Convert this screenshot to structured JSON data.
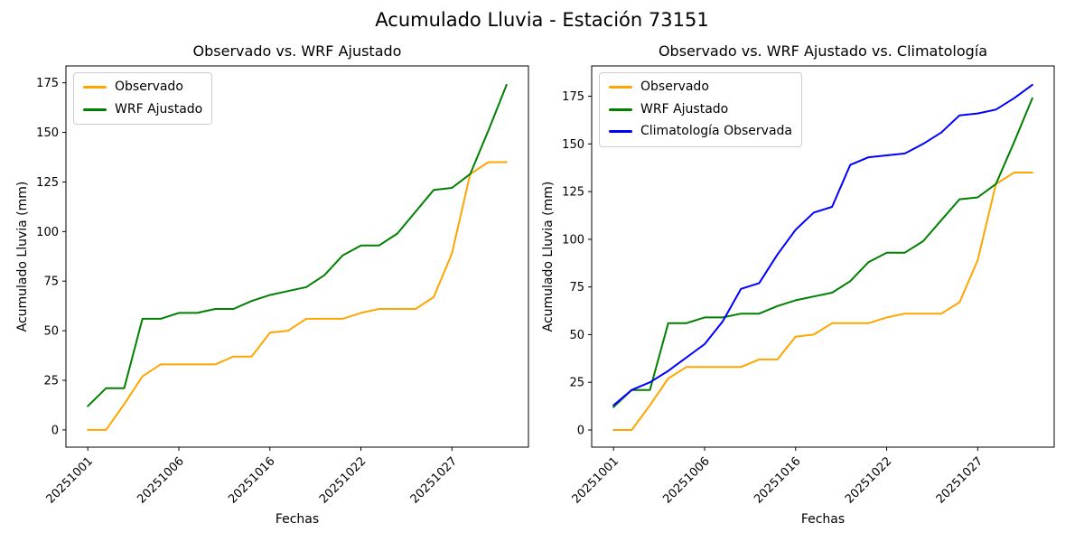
{
  "suptitle": "Acumulado Lluvia - Estación 73151",
  "chart_data": [
    {
      "type": "line",
      "title": "Observado vs. WRF Ajustado",
      "xlabel": "Fechas",
      "ylabel": "Acumulado Lluvia (mm)",
      "grid": false,
      "legend_position": "upper left",
      "x": [
        0,
        1,
        2,
        3,
        4,
        5,
        6,
        7,
        8,
        9,
        10,
        11,
        12,
        13,
        14,
        15,
        16,
        17,
        18,
        19,
        20,
        21,
        22,
        23
      ],
      "x_tick_positions": [
        0,
        5,
        10,
        15,
        20
      ],
      "x_tick_labels": [
        "20251001",
        "20251006",
        "20251016",
        "20251022",
        "20251027"
      ],
      "y_ticks": [
        0,
        25,
        50,
        75,
        100,
        125,
        150,
        175
      ],
      "xlim": [
        -1.2,
        24.2
      ],
      "ylim": [
        -8.7,
        183.5
      ],
      "series": [
        {
          "name": "Observado",
          "color": "#FFA500",
          "values": [
            0,
            0,
            13,
            27,
            33,
            33,
            33,
            33,
            37,
            37,
            49,
            50,
            56,
            56,
            56,
            59,
            61,
            61,
            61,
            67,
            89,
            129,
            135,
            135
          ]
        },
        {
          "name": "WRF Ajustado",
          "color": "#008000",
          "values": [
            12,
            21,
            21,
            56,
            56,
            59,
            59,
            61,
            61,
            65,
            68,
            70,
            72,
            78,
            88,
            93,
            93,
            99,
            110,
            121,
            122,
            129,
            151,
            174
          ]
        }
      ]
    },
    {
      "type": "line",
      "title": "Observado vs. WRF Ajustado vs. Climatología",
      "xlabel": "Fechas",
      "ylabel": "Acumulado Lluvia (mm)",
      "grid": false,
      "legend_position": "upper left",
      "x": [
        0,
        1,
        2,
        3,
        4,
        5,
        6,
        7,
        8,
        9,
        10,
        11,
        12,
        13,
        14,
        15,
        16,
        17,
        18,
        19,
        20,
        21,
        22,
        23
      ],
      "x_tick_positions": [
        0,
        5,
        10,
        15,
        20
      ],
      "x_tick_labels": [
        "20251001",
        "20251006",
        "20251016",
        "20251022",
        "20251027"
      ],
      "y_ticks": [
        0,
        25,
        50,
        75,
        100,
        125,
        150,
        175
      ],
      "xlim": [
        -1.2,
        24.2
      ],
      "ylim": [
        -9.0,
        190.9
      ],
      "series": [
        {
          "name": "Observado",
          "color": "#FFA500",
          "values": [
            0,
            0,
            13,
            27,
            33,
            33,
            33,
            33,
            37,
            37,
            49,
            50,
            56,
            56,
            56,
            59,
            61,
            61,
            61,
            67,
            89,
            129,
            135,
            135
          ]
        },
        {
          "name": "WRF Ajustado",
          "color": "#008000",
          "values": [
            12,
            21,
            21,
            56,
            56,
            59,
            59,
            61,
            61,
            65,
            68,
            70,
            72,
            78,
            88,
            93,
            93,
            99,
            110,
            121,
            122,
            129,
            151,
            174
          ]
        },
        {
          "name": "Climatología Observada",
          "color": "#0000FF",
          "values": [
            13,
            21,
            25,
            31,
            38,
            45,
            57,
            74,
            77,
            92,
            105,
            114,
            117,
            139,
            143,
            144,
            145,
            150,
            156,
            165,
            166,
            168,
            174,
            181
          ]
        }
      ]
    }
  ]
}
